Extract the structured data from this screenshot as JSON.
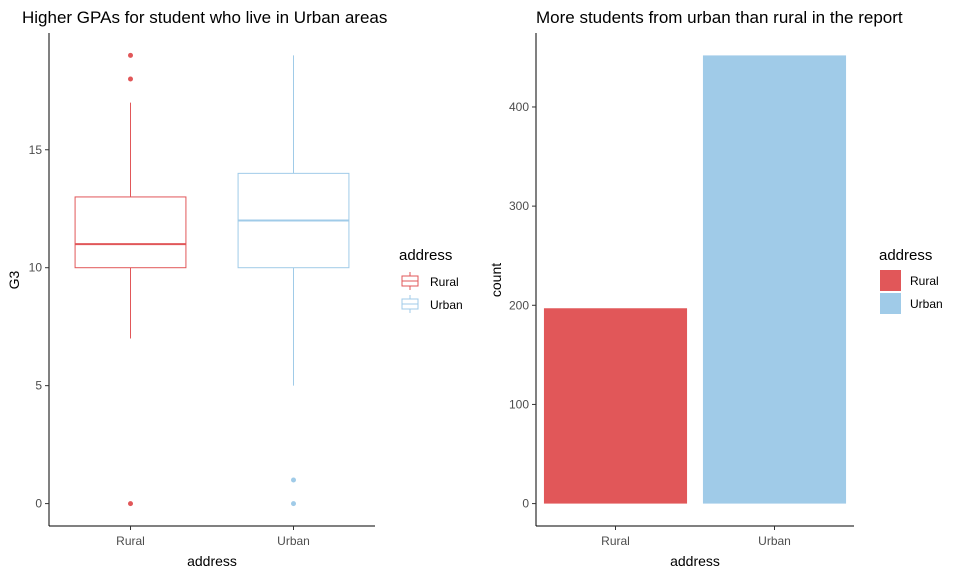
{
  "colors": {
    "Rural": "#E15759",
    "Urban": "#A0CBE8"
  },
  "chart_data": [
    {
      "type": "boxplot",
      "title": "Higher GPAs for student who live in Urban areas",
      "xlabel": "address",
      "ylabel": "G3",
      "categories": [
        "Rural",
        "Urban"
      ],
      "yticks": [
        0,
        5,
        10,
        15
      ],
      "ylim": [
        -0.95,
        19.95
      ],
      "boxes": [
        {
          "name": "Rural",
          "min": 7,
          "q1": 10,
          "median": 11,
          "q3": 13,
          "max": 17,
          "outliers": [
            0,
            18,
            19
          ]
        },
        {
          "name": "Urban",
          "min": 5,
          "q1": 10,
          "median": 12,
          "q3": 14,
          "max": 19,
          "outliers": [
            0,
            1
          ]
        }
      ],
      "legend": {
        "title": "address",
        "entries": [
          "Rural",
          "Urban"
        ],
        "position": "right"
      },
      "grid": false
    },
    {
      "type": "bar",
      "title": "More students from urban than rural in the report",
      "xlabel": "address",
      "ylabel": "count",
      "categories": [
        "Rural",
        "Urban"
      ],
      "values": [
        197,
        452
      ],
      "yticks": [
        0,
        100,
        200,
        300,
        400
      ],
      "ylim": [
        -22.6,
        474.6
      ],
      "legend": {
        "title": "address",
        "entries": [
          "Rural",
          "Urban"
        ],
        "position": "right"
      },
      "grid": false
    }
  ]
}
